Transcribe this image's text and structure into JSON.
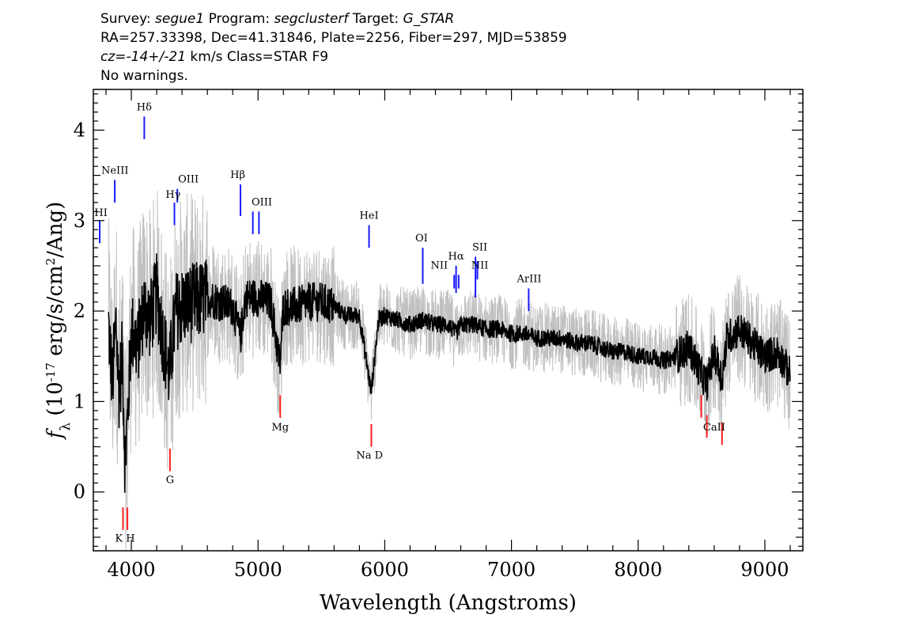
{
  "header": {
    "line1": {
      "survey_label": "Survey: ",
      "survey": "segue1",
      "program_label": " Program: ",
      "program": "segclusterf",
      "target_label": " Target: ",
      "target": "G_STAR"
    },
    "line2": "RA=257.33398, Dec=41.31846, Plate=2256, Fiber=297, MJD=53859",
    "line3": {
      "cz": "cz=-14+/-21",
      "rest": " km/s Class=STAR F9"
    },
    "line4": "No warnings."
  },
  "chart_data": {
    "type": "line",
    "xlabel": "Wavelength (Angstroms)",
    "ylabel": "f_λ (10^-17 erg/s/cm^2/Ang)",
    "xlim": [
      3700,
      9300
    ],
    "ylim": [
      -0.65,
      4.45
    ],
    "xticks": [
      4000,
      5000,
      6000,
      7000,
      8000,
      9000
    ],
    "yticks": [
      0,
      1,
      2,
      3,
      4
    ],
    "colors": {
      "spectrum": "#000000",
      "error": "#c0c0c0",
      "emission": "#1a1aff",
      "absorption": "#ff2020"
    },
    "series": [
      {
        "role": "spectrum",
        "x": [
          3820,
          3850,
          3880,
          3900,
          3930,
          3950,
          3970,
          4000,
          4050,
          4100,
          4150,
          4200,
          4250,
          4300,
          4350,
          4400,
          4500,
          4600,
          4700,
          4800,
          4861,
          4900,
          5000,
          5100,
          5172,
          5200,
          5300,
          5400,
          5500,
          5600,
          5700,
          5800,
          5893,
          5950,
          6000,
          6100,
          6200,
          6300,
          6400,
          6500,
          6563,
          6600,
          6700,
          6800,
          6900,
          7000,
          7100,
          7200,
          7300,
          7400,
          7500,
          7600,
          7700,
          7800,
          7900,
          8000,
          8100,
          8200,
          8300,
          8400,
          8500,
          8542,
          8600,
          8662,
          8700,
          8800,
          8900,
          9000,
          9100,
          9200
        ],
        "y": [
          1.85,
          1.2,
          1.9,
          1.1,
          1.5,
          0.3,
          0.8,
          1.8,
          1.6,
          2.05,
          1.9,
          2.2,
          1.7,
          1.3,
          2.0,
          2.05,
          2.1,
          2.15,
          2.1,
          2.05,
          1.7,
          2.15,
          2.15,
          2.1,
          1.4,
          2.05,
          2.05,
          2.1,
          2.1,
          2.05,
          1.95,
          1.95,
          1.1,
          1.9,
          1.95,
          1.9,
          1.85,
          1.9,
          1.85,
          1.85,
          1.75,
          1.85,
          1.85,
          1.8,
          1.8,
          1.75,
          1.75,
          1.7,
          1.7,
          1.7,
          1.65,
          1.65,
          1.6,
          1.55,
          1.55,
          1.5,
          1.5,
          1.45,
          1.5,
          1.6,
          1.3,
          1.2,
          1.55,
          1.25,
          1.7,
          1.8,
          1.65,
          1.5,
          1.55,
          1.3
        ]
      }
    ],
    "emission_lines": [
      {
        "label": "HI",
        "wavelength": 3750,
        "y_low": 2.75,
        "y_high": 3.0
      },
      {
        "label": "NeIII",
        "wavelength": 3869,
        "y_low": 3.2,
        "y_high": 3.45
      },
      {
        "label": "Hδ",
        "wavelength": 4102,
        "y_low": 3.9,
        "y_high": 4.15
      },
      {
        "label": "Hγ",
        "wavelength": 4340,
        "y_low": 2.95,
        "y_high": 3.2
      },
      {
        "label": "OIII",
        "wavelength": 4363,
        "y_low": 3.2,
        "y_high": 3.35
      },
      {
        "label": "Hβ",
        "wavelength": 4861,
        "y_low": 3.05,
        "y_high": 3.4
      },
      {
        "label": "OIII",
        "wavelength": 4959,
        "y_low": 2.85,
        "y_high": 3.1
      },
      {
        "label": "OIII",
        "wavelength": 5007,
        "y_low": 2.85,
        "y_high": 3.1
      },
      {
        "label": "HeI",
        "wavelength": 5876,
        "y_low": 2.7,
        "y_high": 2.95
      },
      {
        "label": "OI",
        "wavelength": 6300,
        "y_low": 2.3,
        "y_high": 2.7
      },
      {
        "label": "NII",
        "wavelength": 6548,
        "y_low": 2.25,
        "y_high": 2.4
      },
      {
        "label": "Hα",
        "wavelength": 6563,
        "y_low": 2.2,
        "y_high": 2.5
      },
      {
        "label": "NII",
        "wavelength": 6583,
        "y_low": 2.25,
        "y_high": 2.4
      },
      {
        "label": "SII",
        "wavelength": 6716,
        "y_low": 2.15,
        "y_high": 2.6
      },
      {
        "label": "SII",
        "wavelength": 6731,
        "y_low": 2.35,
        "y_high": 2.55
      },
      {
        "label": "ArIII",
        "wavelength": 7136,
        "y_low": 2.0,
        "y_high": 2.25
      }
    ],
    "emission_labels": [
      {
        "text": "HI",
        "wavelength": 3760,
        "y": 3.05
      },
      {
        "text": "NeIII",
        "wavelength": 3870,
        "y": 3.52
      },
      {
        "text": "Hδ",
        "wavelength": 4102,
        "y": 4.22
      },
      {
        "text": "Hγ",
        "wavelength": 4330,
        "y": 3.25
      },
      {
        "text": "OIII",
        "wavelength": 4450,
        "y": 3.42
      },
      {
        "text": "Hβ",
        "wavelength": 4840,
        "y": 3.47
      },
      {
        "text": "OIII",
        "wavelength": 5030,
        "y": 3.17
      },
      {
        "text": "HeI",
        "wavelength": 5876,
        "y": 3.02
      },
      {
        "text": "OI",
        "wavelength": 6290,
        "y": 2.77
      },
      {
        "text": "NII",
        "wavelength": 6430,
        "y": 2.47
      },
      {
        "text": "Hα",
        "wavelength": 6563,
        "y": 2.57
      },
      {
        "text": "SII",
        "wavelength": 6750,
        "y": 2.67
      },
      {
        "text": "NII",
        "wavelength": 6750,
        "y": 2.47
      },
      {
        "text": "ArIII",
        "wavelength": 7140,
        "y": 2.32
      }
    ],
    "absorption_lines": [
      {
        "label": "K",
        "wavelength": 3934,
        "y_low": -0.42,
        "y_high": -0.17
      },
      {
        "label": "H",
        "wavelength": 3969,
        "y_low": -0.42,
        "y_high": -0.17
      },
      {
        "label": "G",
        "wavelength": 4305,
        "y_low": 0.23,
        "y_high": 0.48
      },
      {
        "label": "Mg",
        "wavelength": 5175,
        "y_low": 0.82,
        "y_high": 1.07
      },
      {
        "label": "Na D",
        "wavelength": 5894,
        "y_low": 0.5,
        "y_high": 0.75
      },
      {
        "label": "CaII",
        "wavelength": 8498,
        "y_low": 0.82,
        "y_high": 1.07
      },
      {
        "label": "CaII",
        "wavelength": 8542,
        "y_low": 0.6,
        "y_high": 0.85
      },
      {
        "label": "CaII",
        "wavelength": 8662,
        "y_low": 0.52,
        "y_high": 0.77
      }
    ],
    "absorption_labels": [
      {
        "text": "K H",
        "wavelength": 3950,
        "y": -0.55
      },
      {
        "text": "G",
        "wavelength": 4305,
        "y": 0.1
      },
      {
        "text": "Mg",
        "wavelength": 5175,
        "y": 0.68
      },
      {
        "text": "Na D",
        "wavelength": 5880,
        "y": 0.37
      },
      {
        "text": "CaII",
        "wavelength": 8600,
        "y": 0.68
      }
    ]
  }
}
